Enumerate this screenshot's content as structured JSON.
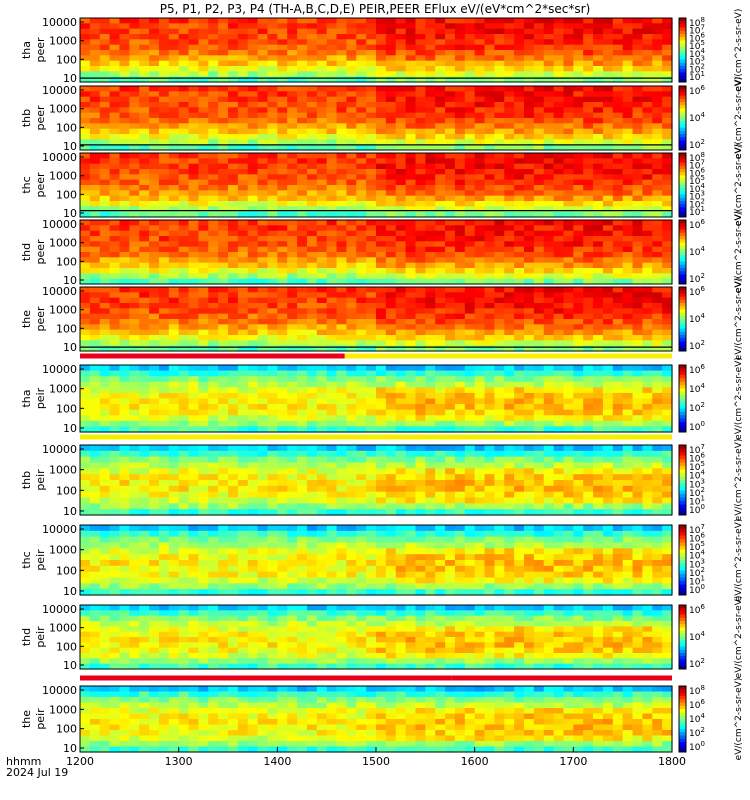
{
  "chart_data": {
    "type": "heatmap",
    "title": "P5, P1, P2, P3, P4 (TH-A,B,C,D,E) PEIR,PEER EFlux eV/(eV*cm^2*sec*sr)",
    "x_ticks": [
      "1200",
      "1300",
      "1400",
      "1500",
      "1600",
      "1700",
      "1800"
    ],
    "xlim": [
      "1200",
      "1800"
    ],
    "xlabel_line1": "hhmm",
    "xlabel_line2": "2024 Jul 19",
    "y_scale": "log",
    "colorbar_unit": "eV/(cm^2-s-sr-eV)",
    "panels": [
      {
        "id": "tha_peer",
        "probe": "tha",
        "instrument": "peer",
        "yticks": [
          "10000",
          "1000",
          "100",
          "10"
        ],
        "cbar_ticks": [
          "10^8",
          "10^7",
          "10^6",
          "10^5",
          "10^4",
          "10^3",
          "10^2",
          "10^1"
        ],
        "cbar_label": "eV/(cm^2-s-sr-eV)",
        "has_line": true,
        "line_level": 0.06
      },
      {
        "id": "thb_peer",
        "probe": "thb",
        "instrument": "peer",
        "yticks": [
          "10000",
          "1000",
          "100",
          "10"
        ],
        "cbar_ticks": [
          "10^6",
          "10^4",
          "10^2"
        ],
        "cbar_label": "eV/(cm^2-s-sr-eV)",
        "has_line": true,
        "line_level": 0.08
      },
      {
        "id": "thc_peer",
        "probe": "thc",
        "instrument": "peer",
        "yticks": [
          "10000",
          "1000",
          "100",
          "10"
        ],
        "cbar_ticks": [
          "10^8",
          "10^7",
          "10^6",
          "10^5",
          "10^4",
          "10^3",
          "10^2",
          "10^1"
        ],
        "cbar_label": "eV/(cm^2-s-sr-eV)",
        "has_line": true,
        "line_level": 0.1
      },
      {
        "id": "thd_peer",
        "probe": "thd",
        "instrument": "peer",
        "yticks": [
          "10000",
          "1000",
          "100",
          "10"
        ],
        "cbar_ticks": [
          "10^6",
          "10^4",
          "10^2"
        ],
        "cbar_label": "eV/(cm^2-s-sr-eV)",
        "has_line": false,
        "line_level": 0
      },
      {
        "id": "the_peer",
        "probe": "the",
        "instrument": "peer",
        "yticks": [
          "10000",
          "1000",
          "100",
          "10"
        ],
        "cbar_ticks": [
          "10^6",
          "10^4",
          "10^2"
        ],
        "cbar_label": "eV/(cm^2-s-sr-eV)",
        "has_line": true,
        "line_level": 0.06
      },
      {
        "id": "tha_peir",
        "probe": "tha",
        "instrument": "peir",
        "yticks": [
          "10000",
          "1000",
          "100",
          "10"
        ],
        "cbar_ticks": [
          "10^6",
          "10^4",
          "10^2",
          "10^0"
        ],
        "cbar_label": "eV/(cm^2-s-sr-eV)",
        "has_line": false,
        "line_level": 0
      },
      {
        "id": "thb_peir",
        "probe": "thb",
        "instrument": "peir",
        "yticks": [
          "10000",
          "1000",
          "100",
          "10"
        ],
        "cbar_ticks": [
          "10^7",
          "10^6",
          "10^5",
          "10^4",
          "10^3",
          "10^2",
          "10^1",
          "10^0"
        ],
        "cbar_label": "eV/(cm^2-s-sr-eV)",
        "has_line": false,
        "line_level": 0
      },
      {
        "id": "thc_peir",
        "probe": "thc",
        "instrument": "peir",
        "yticks": [
          "10000",
          "1000",
          "100",
          "10"
        ],
        "cbar_ticks": [
          "10^7",
          "10^6",
          "10^5",
          "10^4",
          "10^3",
          "10^2",
          "10^1",
          "10^0"
        ],
        "cbar_label": "eV/(cm^2-s-sr-eV)",
        "has_line": false,
        "line_level": 0
      },
      {
        "id": "thd_peir",
        "probe": "thd",
        "instrument": "peir",
        "yticks": [
          "10000",
          "1000",
          "100",
          "10"
        ],
        "cbar_ticks": [
          "10^6",
          "10^4",
          "10^2"
        ],
        "cbar_label": "eV/(cm^2-s-sr-eV)",
        "has_line": false,
        "line_level": 0
      },
      {
        "id": "the_peir",
        "probe": "the",
        "instrument": "peir",
        "yticks": [
          "10000",
          "1000",
          "100",
          "10"
        ],
        "cbar_ticks": [
          "10^8",
          "10^6",
          "10^4",
          "10^2",
          "10^0"
        ],
        "cbar_label": "eV/(cm^2-s-sr-eV)",
        "has_line": false,
        "line_level": 0
      }
    ],
    "mode_bars": [
      {
        "after_panel": "the_peer",
        "segments": [
          {
            "from": "1200",
            "to": "1441",
            "color": "#e8001a"
          },
          {
            "from": "1441",
            "to": "1800",
            "color": "#f7ef00"
          }
        ]
      },
      {
        "after_panel": "tha_peir",
        "segments": [
          {
            "from": "1200",
            "to": "1800",
            "color": "#f7ef00"
          }
        ]
      },
      {
        "after_panel": "thd_peir",
        "segments": [
          {
            "from": "1200",
            "to": "1546",
            "color": "#e8001a"
          },
          {
            "from": "1546",
            "to": "1800",
            "color": "#e8001a"
          }
        ]
      }
    ]
  }
}
